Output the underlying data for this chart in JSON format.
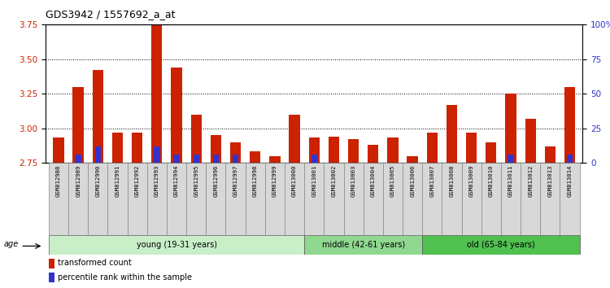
{
  "title": "GDS3942 / 1557692_a_at",
  "samples": [
    "GSM812988",
    "GSM812989",
    "GSM812990",
    "GSM812991",
    "GSM812992",
    "GSM812993",
    "GSM812994",
    "GSM812995",
    "GSM812996",
    "GSM812997",
    "GSM812998",
    "GSM812999",
    "GSM813000",
    "GSM813001",
    "GSM813002",
    "GSM813003",
    "GSM813004",
    "GSM813005",
    "GSM813006",
    "GSM813007",
    "GSM813008",
    "GSM813009",
    "GSM813010",
    "GSM813011",
    "GSM813012",
    "GSM813013",
    "GSM813014"
  ],
  "red_values": [
    2.93,
    3.3,
    3.42,
    2.97,
    2.97,
    3.75,
    3.44,
    3.1,
    2.95,
    2.9,
    2.83,
    2.8,
    3.1,
    2.93,
    2.94,
    2.92,
    2.88,
    2.93,
    2.8,
    2.97,
    3.17,
    2.97,
    2.9,
    3.25,
    3.07,
    2.87,
    3.3
  ],
  "blue_values": [
    0,
    6,
    12,
    0,
    0,
    12,
    6,
    6,
    6,
    6,
    0,
    0,
    0,
    6,
    0,
    0,
    0,
    0,
    0,
    0,
    0,
    0,
    0,
    6,
    0,
    0,
    6
  ],
  "groups": [
    {
      "label": "young (19-31 years)",
      "start": 0,
      "end": 13,
      "color": "#c8efc8"
    },
    {
      "label": "middle (42-61 years)",
      "start": 13,
      "end": 19,
      "color": "#90d890"
    },
    {
      "label": "old (65-84 years)",
      "start": 19,
      "end": 27,
      "color": "#50c050"
    }
  ],
  "ylim_left": [
    2.75,
    3.75
  ],
  "ylim_right": [
    0,
    100
  ],
  "yticks_left": [
    2.75,
    3.0,
    3.25,
    3.5,
    3.75
  ],
  "yticks_right": [
    0,
    25,
    50,
    75,
    100
  ],
  "ytick_labels_right": [
    "0",
    "25",
    "50",
    "75",
    "100%"
  ],
  "bar_color_red": "#cc2200",
  "bar_color_blue": "#3333cc",
  "baseline": 2.75,
  "legend_red": "transformed count",
  "legend_blue": "percentile rank within the sample",
  "age_label": "age",
  "tick_label_color_left": "#cc2200",
  "tick_label_color_right": "#3333cc",
  "label_bg_color": "#d8d8d8",
  "label_border_color": "#888888"
}
